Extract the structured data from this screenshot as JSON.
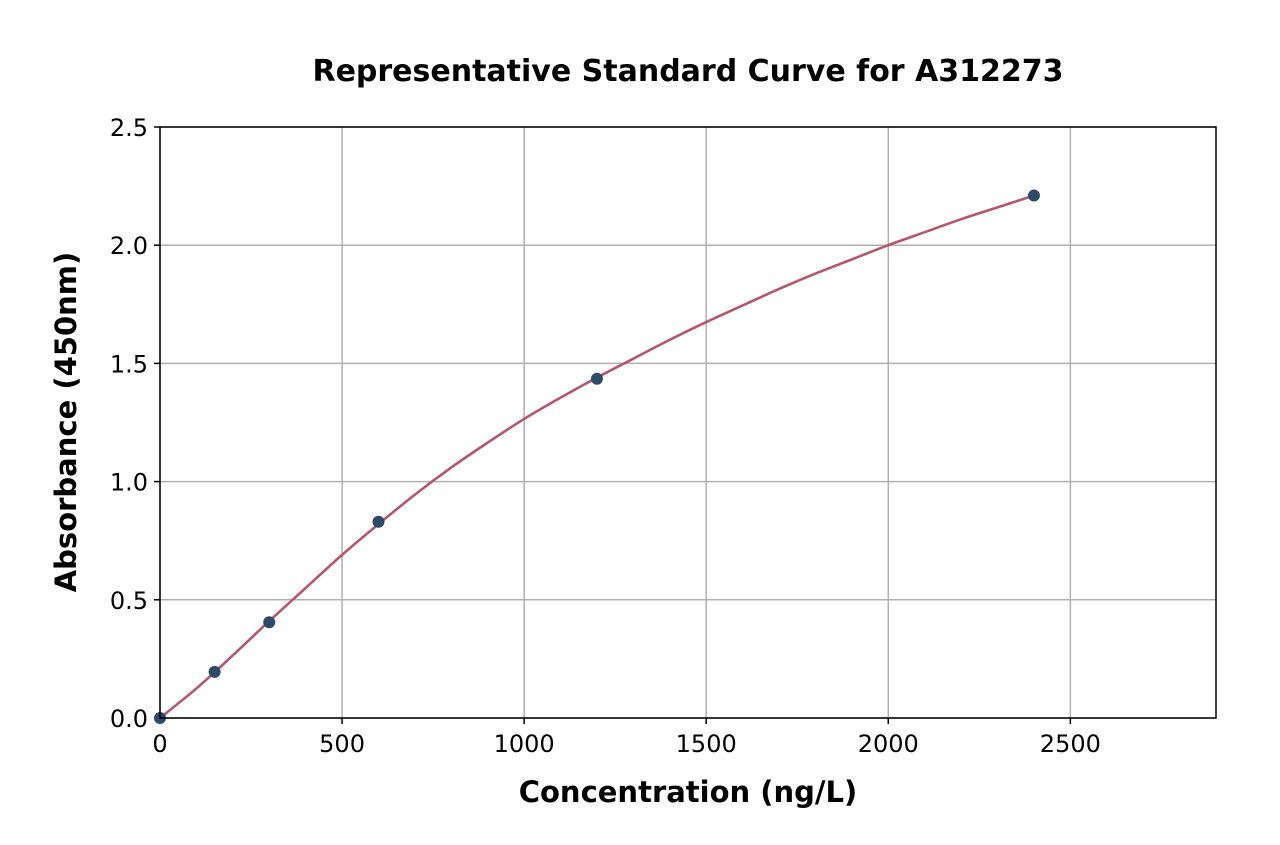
{
  "chart_data": {
    "type": "scatter",
    "title": "Representative Standard Curve for A312273",
    "xlabel": "Concentration (ng/L)",
    "ylabel": "Absorbance (450nm)",
    "xlim": [
      0,
      2900
    ],
    "ylim": [
      0,
      2.5
    ],
    "xticks": [
      0,
      500,
      1000,
      1500,
      2000,
      2500
    ],
    "xtick_labels": [
      "0",
      "500",
      "1000",
      "1500",
      "2000",
      "2500"
    ],
    "yticks": [
      0,
      0.5,
      1.0,
      1.5,
      2.0,
      2.5
    ],
    "ytick_labels": [
      "0.0",
      "0.5",
      "1.0",
      "1.5",
      "2.0",
      "2.5"
    ],
    "grid": true,
    "series": [
      {
        "kind": "points",
        "color": "#2e4a6b",
        "x": [
          0,
          150,
          300,
          600,
          1200,
          2400
        ],
        "y": [
          0.0,
          0.195,
          0.405,
          0.83,
          1.435,
          2.21
        ]
      },
      {
        "kind": "fit-curve",
        "color": "#b5566f",
        "x": [
          0,
          100,
          200,
          300,
          400,
          500,
          600,
          700,
          800,
          900,
          1000,
          1100,
          1200,
          1300,
          1400,
          1500,
          1600,
          1700,
          1800,
          1900,
          2000,
          2100,
          2200,
          2300,
          2400
        ],
        "y": [
          0.0,
          0.125,
          0.265,
          0.41,
          0.55,
          0.69,
          0.82,
          0.945,
          1.06,
          1.165,
          1.265,
          1.355,
          1.44,
          1.52,
          1.6,
          1.675,
          1.745,
          1.815,
          1.88,
          1.94,
          2.0,
          2.055,
          2.11,
          2.16,
          2.21
        ]
      }
    ]
  }
}
